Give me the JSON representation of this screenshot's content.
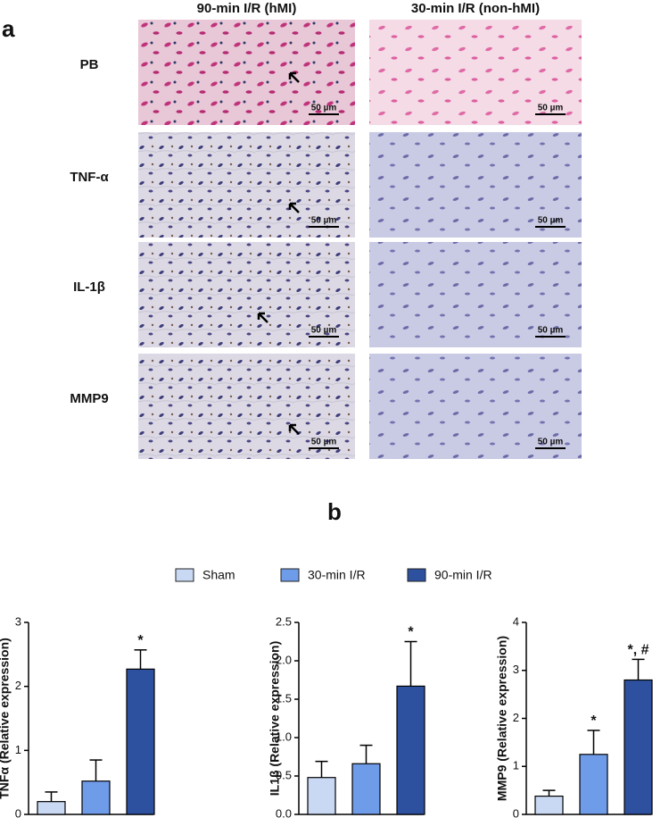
{
  "panel_a": {
    "label": "a",
    "columns": [
      "90-min I/R (hMI)",
      "30-min I/R (non-hMI)"
    ],
    "rows": [
      "PB",
      "TNF-α",
      "IL-1β",
      "MMP9"
    ],
    "scale_bar_label": "50 µm"
  },
  "panel_b": {
    "label": "b"
  },
  "legend": [
    {
      "name": "Sham",
      "color": "#cad9f3"
    },
    {
      "name": "30-min I/R",
      "color": "#6f9ce9"
    },
    {
      "name": "90-min I/R",
      "color": "#2e519f"
    }
  ],
  "chart_data": [
    {
      "type": "bar",
      "ylabel": "TNFα (Relative expression)",
      "values": [
        0.2,
        0.52,
        2.27
      ],
      "errors": [
        0.15,
        0.33,
        0.3
      ],
      "colors": [
        "#cad9f3",
        "#6f9ce9",
        "#2e519f"
      ],
      "annotations": [
        null,
        null,
        "*"
      ],
      "ylim": [
        0,
        3
      ],
      "yticks": [
        0,
        1,
        2,
        3
      ]
    },
    {
      "type": "bar",
      "ylabel": "IL1β (Relative expression)",
      "values": [
        0.48,
        0.66,
        1.67
      ],
      "errors": [
        0.21,
        0.24,
        0.58
      ],
      "colors": [
        "#cad9f3",
        "#6f9ce9",
        "#2e519f"
      ],
      "annotations": [
        null,
        null,
        "*"
      ],
      "ylim": [
        0,
        2.5
      ],
      "yticks": [
        {
          "value": 0,
          "label": "0.0"
        },
        {
          "value": 0.5,
          "label": "0.5"
        },
        {
          "value": 1,
          "label": "1.0"
        },
        {
          "value": 1.5,
          "label": "1.5"
        },
        {
          "value": 2,
          "label": "2.0"
        },
        {
          "value": 2.5,
          "label": "2.5"
        }
      ]
    },
    {
      "type": "bar",
      "ylabel": "MMP9 (Relative expression)",
      "values": [
        0.38,
        1.25,
        2.8
      ],
      "errors": [
        0.12,
        0.5,
        0.43
      ],
      "colors": [
        "#cad9f3",
        "#6f9ce9",
        "#2e519f"
      ],
      "annotations": [
        null,
        "*",
        "*, #"
      ],
      "ylim": [
        0,
        4
      ],
      "yticks": [
        0,
        1,
        2,
        3,
        4
      ]
    }
  ]
}
